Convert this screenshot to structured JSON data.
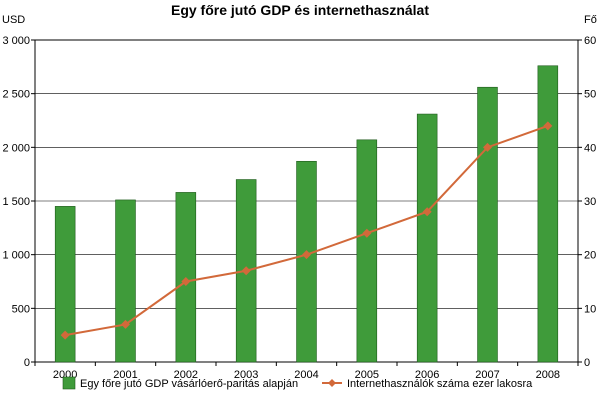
{
  "chart_data": {
    "type": "bar+line",
    "title": "Egy főre jutó GDP és internethasználat",
    "y_left_unit": "USD",
    "y_right_unit": "Fő",
    "categories": [
      "2000",
      "2001",
      "2002",
      "2003",
      "2004",
      "2005",
      "2006",
      "2007",
      "2008"
    ],
    "y_left_ticks": [
      "0",
      "500",
      "1 000",
      "1 500",
      "2 000",
      "2 500",
      "3 000"
    ],
    "y_right_ticks": [
      "0",
      "10",
      "20",
      "30",
      "40",
      "50",
      "60"
    ],
    "ylim_left": [
      0,
      3000
    ],
    "ylim_right": [
      0,
      60
    ],
    "series": [
      {
        "name": "Egy főre jutó GDP vásárlóerő-paritás alapján",
        "type": "bar",
        "axis": "left",
        "color": "#3f9b3a",
        "values": [
          1450,
          1510,
          1580,
          1700,
          1870,
          2070,
          2310,
          2560,
          2760
        ]
      },
      {
        "name": "Internethasználók száma ezer lakosra",
        "type": "line",
        "axis": "right",
        "color": "#d2693a",
        "values": [
          5,
          7,
          15,
          17,
          20,
          24,
          28,
          40,
          44
        ]
      }
    ],
    "grid": true,
    "legend_position": "bottom"
  }
}
